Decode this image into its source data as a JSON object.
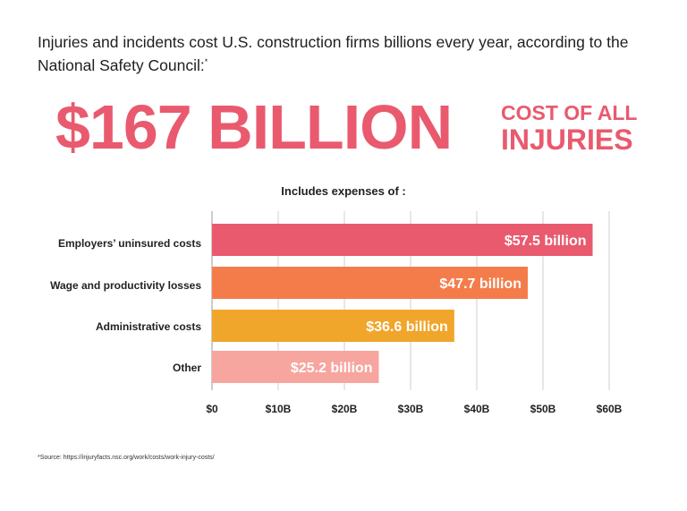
{
  "intro": {
    "text": "Injuries and incidents cost U.S. construction firms billions every year, according to the National Safety Council:",
    "footnote_mark": "*"
  },
  "headline": {
    "value": "$167 BILLION",
    "sub_line1": "COST OF ALL",
    "sub_line2": "INJURIES"
  },
  "footnote": "*Source: https://injuryfacts.nsc.org/work/costs/work-injury-costs/",
  "colors": {
    "headline": "#e95a6f",
    "bars": [
      "#e95a6f",
      "#f47c4b",
      "#f0a52b",
      "#f7a59f"
    ],
    "grid": "#cfcfcf"
  },
  "chart_data": {
    "type": "bar",
    "orientation": "horizontal",
    "title": "Includes expenses of :",
    "categories": [
      "Employers’ uninsured costs",
      "Wage and productivity losses",
      "Administrative costs",
      "Other"
    ],
    "values": [
      57.5,
      47.7,
      36.6,
      25.2
    ],
    "value_labels": [
      "$57.5 billion",
      "$47.7 billion",
      "$36.6 billion",
      "$25.2 billion"
    ],
    "x_ticks": [
      0,
      10,
      20,
      30,
      40,
      50,
      60
    ],
    "x_tick_labels": [
      "$0",
      "$10B",
      "$20B",
      "$30B",
      "$40B",
      "$50B",
      "$60B"
    ],
    "xlim": [
      0,
      60
    ],
    "unit": "billion USD",
    "grid": true,
    "legend": "none"
  }
}
